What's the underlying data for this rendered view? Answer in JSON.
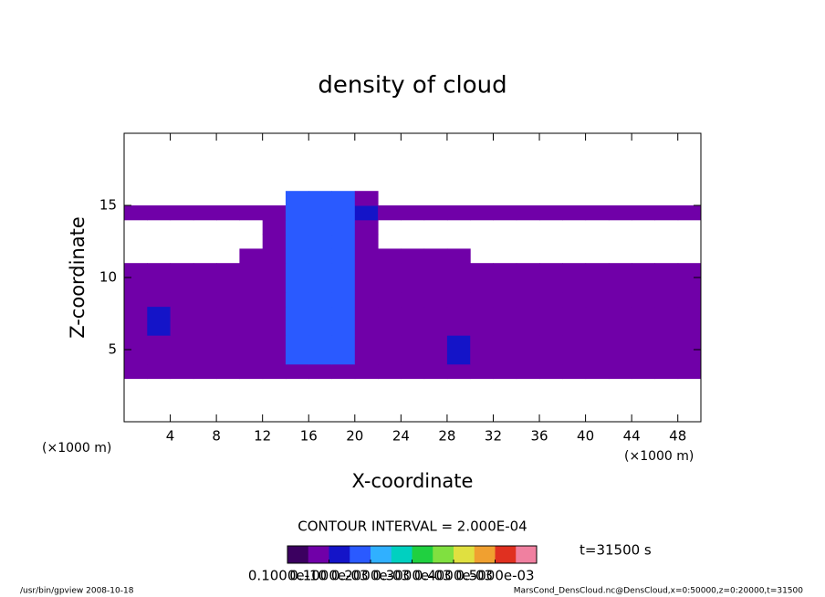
{
  "chart_data": {
    "type": "contour",
    "title": "density of cloud",
    "x_label": "X-coordinate",
    "y_label": "Z-coordinate",
    "x_unit": "(×1000 m)",
    "y_unit": "(×1000 m)",
    "xlim": [
      0,
      50
    ],
    "xticks": [
      4,
      8,
      12,
      16,
      20,
      24,
      28,
      32,
      36,
      40,
      44,
      48
    ],
    "ylim": [
      0,
      20
    ],
    "yticks": [
      5,
      10,
      15
    ],
    "contour_interval": "CONTOUR INTERVAL = 2.000E-04",
    "time": "t=31500 s",
    "clim": [
      0,
      0.0006
    ],
    "cticks": [
      {
        "value": 1e-11,
        "label": "0.1000e-10"
      },
      {
        "value": 0.0001,
        "label": "0.1000e-03"
      },
      {
        "value": 0.0002,
        "label": "0.2000e-03"
      },
      {
        "value": 0.0003,
        "label": "0.3000e-03"
      },
      {
        "value": 0.0004,
        "label": "0.4000e-03"
      },
      {
        "value": 0.0005,
        "label": "0.5000e-03"
      }
    ],
    "colors": [
      "#3b0060",
      "#7000a8",
      "#1414c8",
      "#2a5aff",
      "#30b0ff",
      "#00d0c0",
      "#20d040",
      "#80e040",
      "#e0e040",
      "#f0a030",
      "#e03020",
      "#f080a0"
    ],
    "z": [
      [
        null,
        null,
        null,
        null,
        null,
        null,
        null,
        null,
        null,
        null,
        null,
        null,
        null,
        null,
        null,
        null,
        null,
        null,
        null,
        null,
        null,
        null,
        null,
        null,
        null
      ],
      [
        null,
        null,
        null,
        null,
        null,
        null,
        null,
        null,
        null,
        null,
        null,
        null,
        null,
        null,
        null,
        null,
        null,
        null,
        null,
        null,
        null,
        null,
        null,
        null,
        null
      ],
      [
        null,
        null,
        null,
        null,
        null,
        null,
        null,
        null,
        null,
        null,
        null,
        null,
        null,
        null,
        null,
        null,
        null,
        null,
        null,
        null,
        null,
        null,
        null,
        null,
        null
      ],
      [
        7e-05,
        7e-05,
        7e-05,
        7e-05,
        7e-05,
        7e-05,
        7e-05,
        7e-05,
        7e-05,
        7e-05,
        7e-05,
        7e-05,
        7e-05,
        7e-05,
        7e-05,
        7e-05,
        7e-05,
        7e-05,
        7e-05,
        7e-05,
        7e-05,
        7e-05,
        7e-05,
        7e-05,
        7e-05
      ],
      [
        7e-05,
        7e-05,
        7e-05,
        7e-05,
        7e-05,
        7e-05,
        7e-05,
        0.00017,
        0.00017,
        0.00017,
        7e-05,
        7e-05,
        7e-05,
        7e-05,
        0.00012,
        7e-05,
        7e-05,
        7e-05,
        7e-05,
        7e-05,
        7e-05,
        7e-05,
        7e-05,
        7e-05,
        7e-05
      ],
      [
        7e-05,
        7e-05,
        7e-05,
        7e-05,
        7e-05,
        7e-05,
        7e-05,
        0.00017,
        0.00017,
        0.00017,
        7e-05,
        7e-05,
        7e-05,
        7e-05,
        0.00012,
        7e-05,
        7e-05,
        7e-05,
        7e-05,
        7e-05,
        7e-05,
        7e-05,
        7e-05,
        7e-05,
        7e-05
      ],
      [
        7e-05,
        0.00012,
        7e-05,
        7e-05,
        7e-05,
        7e-05,
        7e-05,
        0.00017,
        0.00017,
        0.00017,
        7e-05,
        7e-05,
        7e-05,
        7e-05,
        7e-05,
        7e-05,
        7e-05,
        7e-05,
        7e-05,
        7e-05,
        7e-05,
        7e-05,
        7e-05,
        7e-05,
        7e-05
      ],
      [
        7e-05,
        0.00012,
        7e-05,
        7e-05,
        7e-05,
        7e-05,
        7e-05,
        0.00017,
        0.00017,
        0.00017,
        7e-05,
        7e-05,
        7e-05,
        7e-05,
        7e-05,
        7e-05,
        7e-05,
        7e-05,
        7e-05,
        7e-05,
        7e-05,
        7e-05,
        7e-05,
        7e-05,
        7e-05
      ],
      [
        7e-05,
        7e-05,
        7e-05,
        7e-05,
        7e-05,
        7e-05,
        7e-05,
        0.00017,
        0.00017,
        0.00017,
        7e-05,
        7e-05,
        7e-05,
        7e-05,
        7e-05,
        7e-05,
        7e-05,
        7e-05,
        7e-05,
        7e-05,
        7e-05,
        7e-05,
        7e-05,
        7e-05,
        7e-05
      ],
      [
        7e-05,
        7e-05,
        7e-05,
        7e-05,
        7e-05,
        7e-05,
        7e-05,
        0.00017,
        0.00017,
        0.00017,
        7e-05,
        7e-05,
        7e-05,
        7e-05,
        7e-05,
        7e-05,
        7e-05,
        7e-05,
        7e-05,
        7e-05,
        7e-05,
        7e-05,
        7e-05,
        7e-05,
        7e-05
      ],
      [
        7e-05,
        7e-05,
        7e-05,
        7e-05,
        7e-05,
        7e-05,
        7e-05,
        0.00017,
        0.00017,
        0.00017,
        7e-05,
        7e-05,
        7e-05,
        7e-05,
        7e-05,
        7e-05,
        7e-05,
        7e-05,
        7e-05,
        7e-05,
        7e-05,
        7e-05,
        7e-05,
        7e-05,
        7e-05
      ],
      [
        null,
        null,
        null,
        null,
        null,
        7e-05,
        7e-05,
        0.00017,
        0.00017,
        0.00017,
        7e-05,
        7e-05,
        7e-05,
        7e-05,
        7e-05,
        null,
        null,
        null,
        null,
        null,
        null,
        null,
        null,
        null,
        null
      ],
      [
        null,
        null,
        null,
        null,
        null,
        null,
        7e-05,
        0.00017,
        0.00017,
        0.00017,
        7e-05,
        null,
        null,
        null,
        null,
        null,
        null,
        null,
        null,
        null,
        null,
        null,
        null,
        null,
        null
      ],
      [
        null,
        null,
        null,
        null,
        null,
        null,
        7e-05,
        0.00017,
        0.00017,
        0.00017,
        7e-05,
        null,
        null,
        null,
        null,
        null,
        null,
        null,
        null,
        null,
        null,
        null,
        null,
        null,
        null
      ],
      [
        7e-05,
        7e-05,
        7e-05,
        7e-05,
        7e-05,
        7e-05,
        7e-05,
        0.00017,
        0.00017,
        0.00017,
        0.00012,
        7e-05,
        7e-05,
        7e-05,
        7e-05,
        7e-05,
        7e-05,
        7e-05,
        7e-05,
        7e-05,
        7e-05,
        7e-05,
        7e-05,
        7e-05,
        7e-05
      ],
      [
        null,
        null,
        null,
        null,
        null,
        null,
        null,
        0.00017,
        0.00017,
        0.00017,
        7e-05,
        null,
        null,
        null,
        null,
        null,
        null,
        null,
        null,
        null,
        null,
        null,
        null,
        null,
        null
      ],
      [
        null,
        null,
        null,
        null,
        null,
        null,
        null,
        null,
        null,
        null,
        null,
        null,
        null,
        null,
        null,
        null,
        null,
        null,
        null,
        null,
        null,
        null,
        null,
        null,
        null
      ],
      [
        null,
        null,
        null,
        null,
        null,
        null,
        null,
        null,
        null,
        null,
        null,
        null,
        null,
        null,
        null,
        null,
        null,
        null,
        null,
        null,
        null,
        null,
        null,
        null,
        null
      ],
      [
        null,
        null,
        null,
        null,
        null,
        null,
        null,
        null,
        null,
        null,
        null,
        null,
        null,
        null,
        null,
        null,
        null,
        null,
        null,
        null,
        null,
        null,
        null,
        null,
        null
      ],
      [
        null,
        null,
        null,
        null,
        null,
        null,
        null,
        null,
        null,
        null,
        null,
        null,
        null,
        null,
        null,
        null,
        null,
        null,
        null,
        null,
        null,
        null,
        null,
        null,
        null
      ]
    ],
    "footer_left": "/usr/bin/gpview  2008-10-18",
    "footer_right": "MarsCond_DensCloud.nc@DensCloud,x=0:50000,z=0:20000,t=31500"
  }
}
